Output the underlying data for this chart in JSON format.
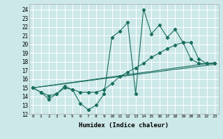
{
  "title": "",
  "xlabel": "Humidex (Indice chaleur)",
  "bg_color": "#cce8e8",
  "grid_color": "#ffffff",
  "line_color": "#1a6e5e",
  "xlim": [
    -0.5,
    23.5
  ],
  "ylim": [
    12,
    24.6
  ],
  "xticks": [
    0,
    1,
    2,
    3,
    4,
    5,
    6,
    7,
    8,
    9,
    10,
    11,
    12,
    13,
    14,
    15,
    16,
    17,
    18,
    19,
    20,
    21,
    22,
    23
  ],
  "yticks": [
    12,
    13,
    14,
    15,
    16,
    17,
    18,
    19,
    20,
    21,
    22,
    23,
    24
  ],
  "line1_x": [
    0,
    1,
    2,
    3,
    4,
    5,
    6,
    7,
    8,
    9,
    10,
    11,
    12,
    13,
    14,
    15,
    16,
    17,
    18,
    19,
    20,
    21,
    22,
    23
  ],
  "line1_y": [
    15.0,
    14.5,
    13.7,
    14.3,
    15.2,
    14.8,
    13.2,
    12.5,
    13.0,
    14.3,
    20.8,
    21.5,
    22.5,
    14.3,
    24.0,
    21.2,
    22.2,
    20.8,
    21.7,
    20.2,
    18.3,
    17.8,
    17.8,
    17.8
  ],
  "line2_x": [
    0,
    1,
    2,
    3,
    4,
    5,
    6,
    7,
    8,
    9,
    10,
    11,
    12,
    13,
    14,
    15,
    16,
    17,
    18,
    19,
    20,
    21,
    22,
    23
  ],
  "line2_y": [
    15.0,
    14.5,
    14.1,
    14.3,
    15.0,
    14.8,
    14.5,
    14.5,
    14.5,
    14.8,
    15.5,
    16.3,
    16.8,
    17.3,
    17.8,
    18.5,
    19.0,
    19.5,
    19.9,
    20.2,
    20.2,
    18.3,
    17.8,
    17.8
  ],
  "line3_x": [
    0,
    23
  ],
  "line3_y": [
    15.0,
    17.7
  ],
  "line4_x": [
    0,
    23
  ],
  "line4_y": [
    15.0,
    17.9
  ]
}
